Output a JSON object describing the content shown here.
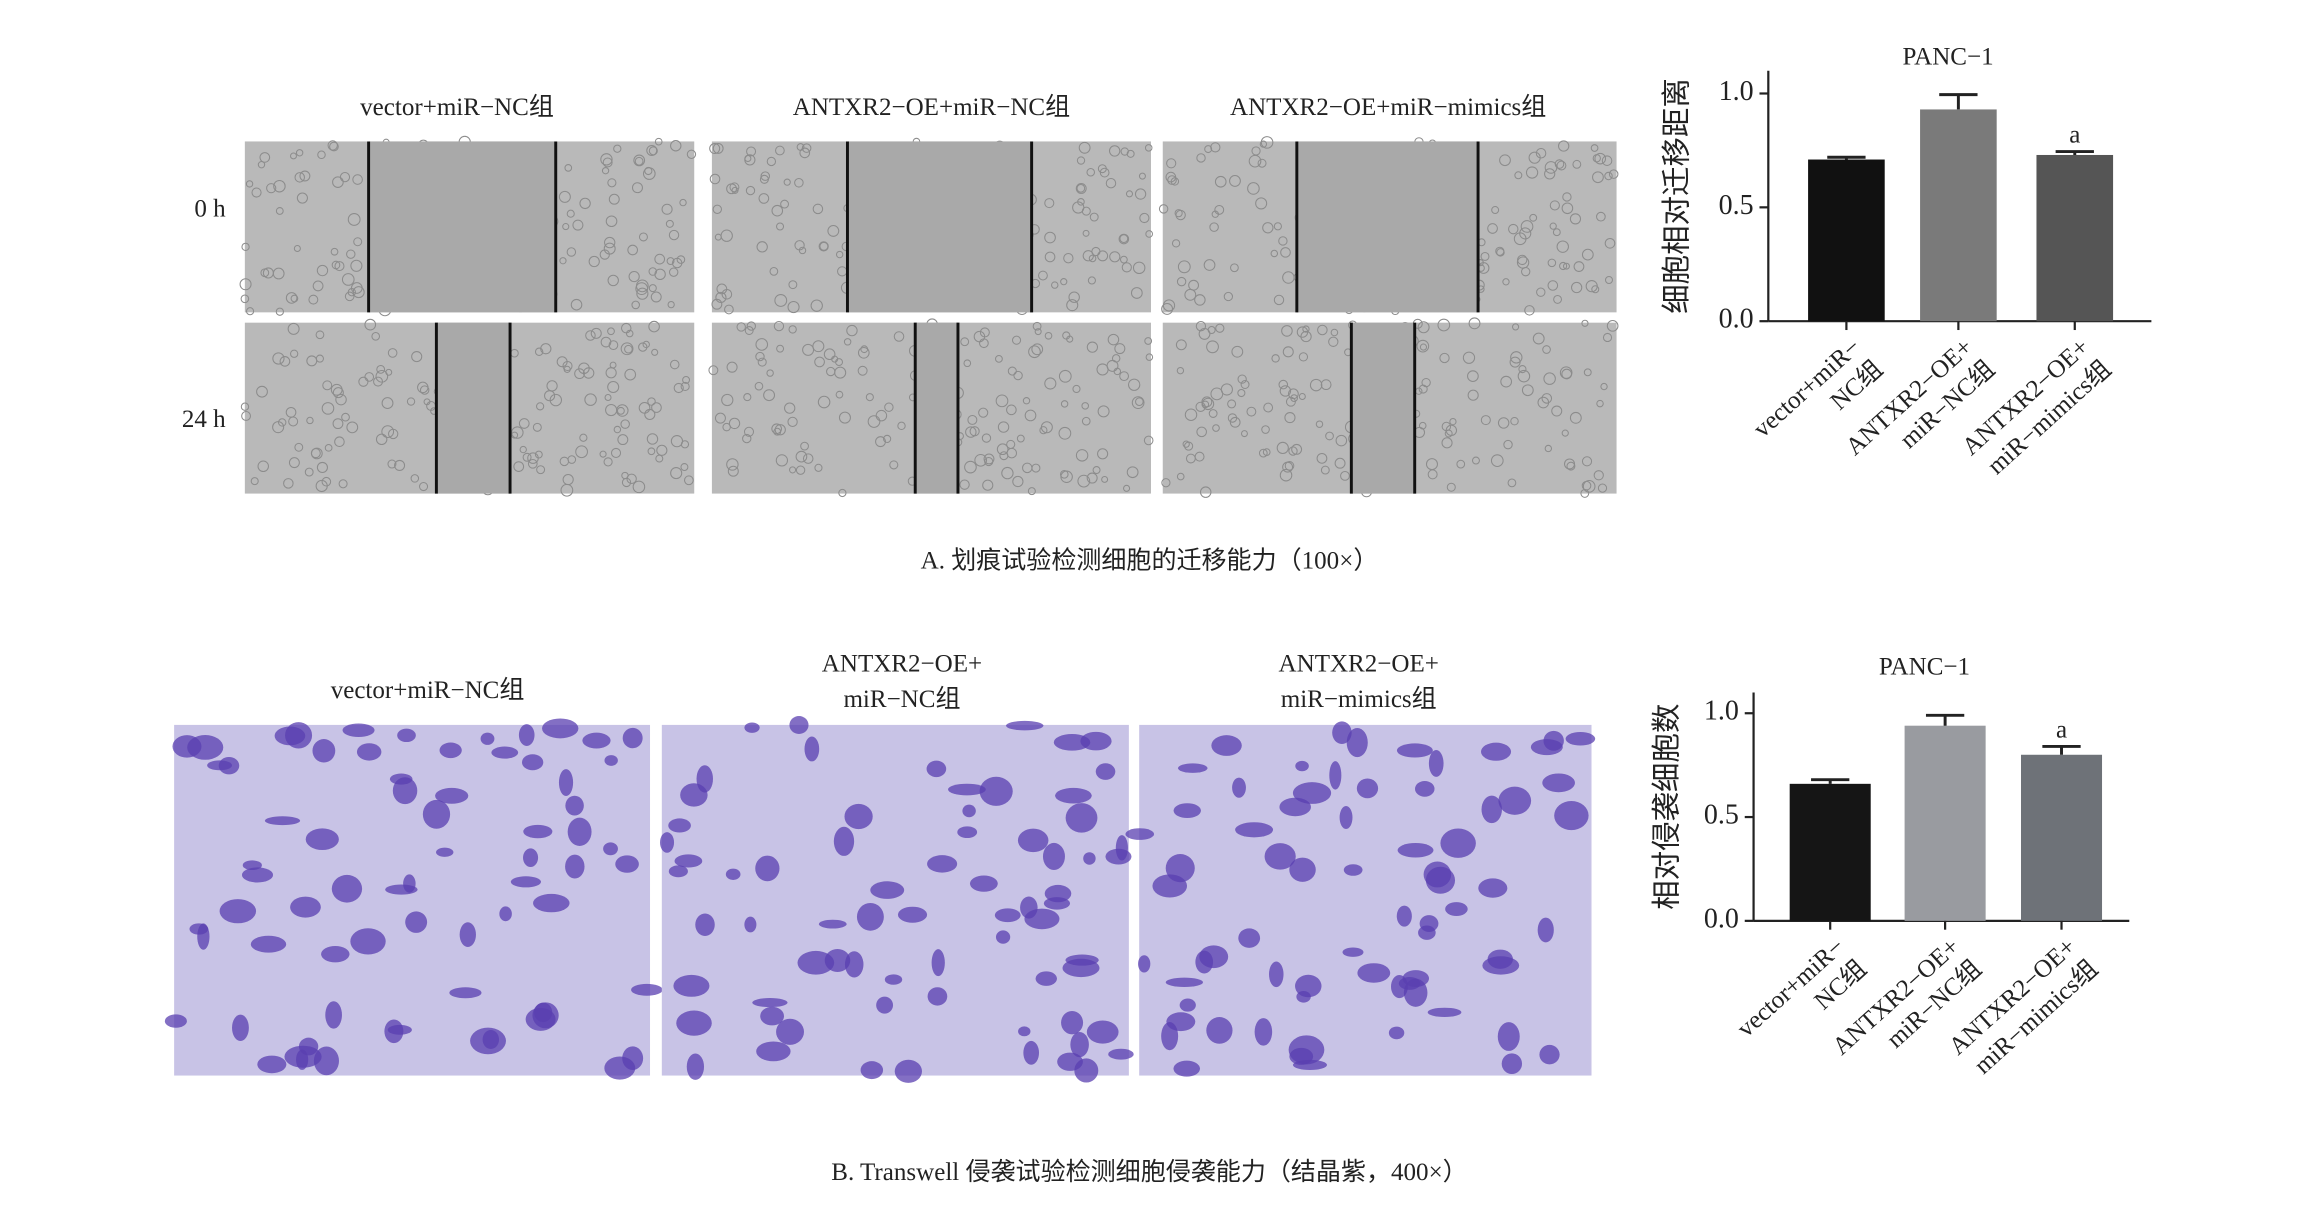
{
  "figure": {
    "panel_a": {
      "column_labels": [
        "vector+miR−NC组",
        "ANTXR2−OE+miR−NC组",
        "ANTXR2−OE+miR−mimics组"
      ],
      "row_labels": [
        "0 h",
        "24 h"
      ],
      "caption": "A. 划痕试验检测细胞的迁移能力（100×）"
    },
    "panel_b": {
      "column_labels": [
        [
          "vector+miR−NC组"
        ],
        [
          "ANTXR2−OE+",
          "miR−NC组"
        ],
        [
          "ANTXR2−OE+",
          "miR−mimics组"
        ]
      ],
      "caption": "B. Transwell 侵袭试验检测细胞侵袭能力（结晶紫，400×）"
    }
  },
  "chart_data": [
    {
      "type": "bar",
      "title": "PANC−1",
      "y_label": "细胞相对迁移距离",
      "categories": [
        [
          "vector+miR−",
          "NC组"
        ],
        [
          "ANTXR2−OE+",
          "miR−NC组"
        ],
        [
          "ANTXR2−OE+",
          "miR−mimics组"
        ]
      ],
      "values": [
        0.71,
        0.93,
        0.73
      ],
      "errors": [
        0.01,
        0.065,
        0.015
      ],
      "significance": [
        null,
        null,
        "a"
      ],
      "colors": [
        "#111111",
        "#7a7a7a",
        "#555555"
      ],
      "ylim": [
        0,
        1.1
      ],
      "yticks": [
        {
          "value": 0,
          "label": "0.0"
        },
        {
          "value": 0.5,
          "label": "0.5"
        },
        {
          "value": 1,
          "label": "1.0"
        }
      ]
    },
    {
      "type": "bar",
      "title": "PANC−1",
      "y_label": "相对侵袭细胞数",
      "categories": [
        [
          "vector+miR−",
          "NC组"
        ],
        [
          "ANTXR2−OE+",
          "miR−NC组"
        ],
        [
          "ANTXR2−OE+",
          "miR−mimics组"
        ]
      ],
      "values": [
        0.66,
        0.94,
        0.8
      ],
      "errors": [
        0.02,
        0.05,
        0.04
      ],
      "significance": [
        null,
        null,
        "a"
      ],
      "colors": [
        "#151515",
        "#999ba0",
        "#6e7278"
      ],
      "ylim": [
        0,
        1.1
      ],
      "yticks": [
        {
          "value": 0,
          "label": "0.0"
        },
        {
          "value": 0.5,
          "label": "0.5"
        },
        {
          "value": 1,
          "label": "1.0"
        }
      ]
    }
  ]
}
